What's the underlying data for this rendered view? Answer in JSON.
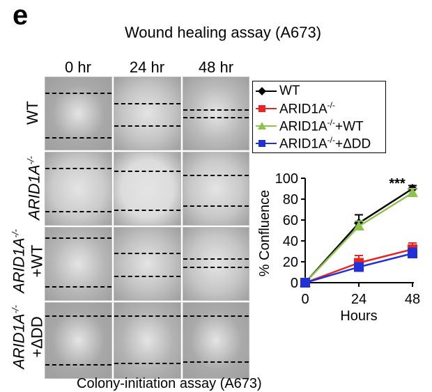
{
  "panel": {
    "letter": "e",
    "title": "Wound healing assay (A673)"
  },
  "micrographs": {
    "columns": [
      "0 hr",
      "24 hr",
      "48 hr"
    ],
    "rows": [
      {
        "label": "WT",
        "label_html": "WT"
      },
      {
        "label": "ARID1A-/-",
        "label_html": "ARID1A<sup>-/-</sup>"
      },
      {
        "label": "ARID1A-/- +WT",
        "line1": "ARID1A-/-",
        "line2": "+WT"
      },
      {
        "label": "ARID1A-/- +ΔDD",
        "line1": "ARID1A-/-",
        "line2": "+ΔDD"
      }
    ],
    "tile_shades": [
      [
        "#a9a9a9",
        "#c4c4c4",
        "#b9b9b9"
      ],
      [
        "#cbcbcb",
        "#dcdcdc",
        "#c9c9c9"
      ],
      [
        "#b7b7b7",
        "#c1c1c1",
        "#c6c6c6"
      ],
      [
        "#a8a8a8",
        "#b3b3b3",
        "#aaaaaa"
      ]
    ]
  },
  "legend": {
    "items": [
      {
        "name": "WT",
        "base": "WT",
        "sup": "",
        "suffix": "",
        "color": "#000000",
        "marker": "diamond"
      },
      {
        "name": "ARID1A-/-",
        "base": "ARID1A",
        "sup": "-/-",
        "suffix": "",
        "color": "#e8251e",
        "marker": "square"
      },
      {
        "name": "ARID1A-/-+WT",
        "base": "ARID1A",
        "sup": "-/-",
        "suffix": "+WT",
        "color": "#8fc24a",
        "marker": "triangle"
      },
      {
        "name": "ARID1A-/-+ΔDD",
        "base": "ARID1A",
        "sup": "-/-",
        "suffix": "+ΔDD",
        "color": "#2130d8",
        "marker": "square"
      }
    ]
  },
  "chart_data": {
    "type": "line",
    "x": [
      0,
      24,
      48
    ],
    "xlabel": "Hours",
    "ylabel": "% Confluence",
    "xticks": [
      0,
      24,
      48
    ],
    "yticks": [
      0,
      20,
      40,
      60,
      80,
      100
    ],
    "xlim": [
      0,
      48
    ],
    "ylim": [
      0,
      100
    ],
    "grid": false,
    "legend_position": "top",
    "annotation": "***",
    "series": [
      {
        "name": "WT",
        "values": [
          0,
          57,
          90
        ],
        "errors": [
          0,
          8,
          3
        ],
        "color": "#000000",
        "marker": "diamond"
      },
      {
        "name": "ARID1A-/-",
        "values": [
          0,
          19,
          32
        ],
        "errors": [
          0,
          7,
          6
        ],
        "color": "#e8251e",
        "marker": "square"
      },
      {
        "name": "ARID1A-/-+WT",
        "values": [
          0,
          54,
          86
        ],
        "errors": [
          0,
          5,
          4
        ],
        "color": "#8fc24a",
        "marker": "triangle"
      },
      {
        "name": "ARID1A-/-+ΔDD",
        "values": [
          0,
          15,
          28
        ],
        "errors": [
          0,
          4,
          5
        ],
        "color": "#2130d8",
        "marker": "square"
      }
    ]
  },
  "footer_cut_text": "Colony-initiation assay (A673)"
}
